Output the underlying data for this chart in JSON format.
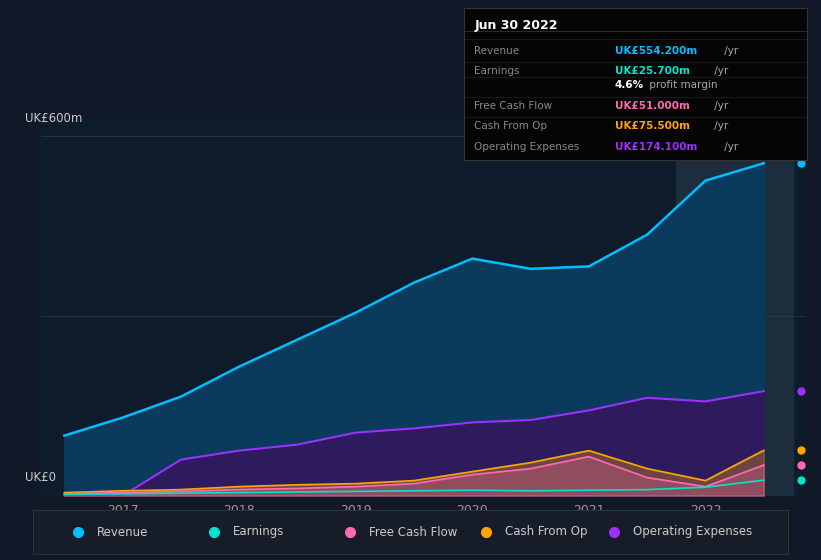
{
  "bg_color": "#111827",
  "chart_bg": "#0d1b2a",
  "ylabel": "UK£600m",
  "ylabel0": "UK£0",
  "x_years": [
    2016.5,
    2017.0,
    2017.5,
    2018.0,
    2018.5,
    2019.0,
    2019.5,
    2020.0,
    2020.5,
    2021.0,
    2021.5,
    2022.0,
    2022.5
  ],
  "revenue": [
    100,
    130,
    165,
    215,
    260,
    305,
    355,
    395,
    378,
    382,
    435,
    525,
    554
  ],
  "earnings": [
    2,
    3,
    4,
    5,
    6,
    7,
    8,
    9,
    8,
    9,
    10,
    14,
    25.7
  ],
  "free_cash_flow": [
    3,
    5,
    7,
    10,
    12,
    15,
    20,
    35,
    45,
    65,
    30,
    15,
    51
  ],
  "cash_from_op": [
    5,
    8,
    10,
    15,
    18,
    20,
    25,
    40,
    55,
    75,
    45,
    25,
    75.5
  ],
  "operating_exp": [
    0,
    0,
    60,
    75,
    85,
    105,
    112,
    122,
    126,
    142,
    163,
    157,
    174.1
  ],
  "revenue_color": "#00bfff",
  "earnings_color": "#00e5cc",
  "fcf_color": "#ff69b4",
  "cashop_color": "#ffa500",
  "opex_color": "#9b30ff",
  "revenue_fill": "#0a3a5c",
  "opex_fill": "#2d1b5e",
  "highlight_x_start": 2021.75,
  "highlight_x_end": 2022.75,
  "highlight_color": "#1e2d3d",
  "info_box": {
    "title": "Jun 30 2022",
    "rows": [
      {
        "label": "Revenue",
        "value": "UK£554.200m",
        "suffix": " /yr",
        "color": "#00bfff"
      },
      {
        "label": "Earnings",
        "value": "UK£25.700m",
        "suffix": " /yr",
        "color": "#00e5cc"
      },
      {
        "label": "",
        "value": "4.6%",
        "suffix": " profit margin",
        "color": "#ffffff"
      },
      {
        "label": "Free Cash Flow",
        "value": "UK£51.000m",
        "suffix": " /yr",
        "color": "#ff69b4"
      },
      {
        "label": "Cash From Op",
        "value": "UK£75.500m",
        "suffix": " /yr",
        "color": "#ffa500"
      },
      {
        "label": "Operating Expenses",
        "value": "UK£174.100m",
        "suffix": " /yr",
        "color": "#9b30ff"
      }
    ]
  },
  "legend": [
    {
      "label": "Revenue",
      "color": "#00bfff"
    },
    {
      "label": "Earnings",
      "color": "#00e5cc"
    },
    {
      "label": "Free Cash Flow",
      "color": "#ff69b4"
    },
    {
      "label": "Cash From Op",
      "color": "#ffa500"
    },
    {
      "label": "Operating Expenses",
      "color": "#9b30ff"
    }
  ],
  "x_tick_labels": [
    "2017",
    "2018",
    "2019",
    "2020",
    "2021",
    "2022"
  ],
  "x_ticks": [
    2017,
    2018,
    2019,
    2020,
    2021,
    2022
  ],
  "ylim": [
    0,
    630
  ],
  "xlim": [
    2016.3,
    2022.85
  ]
}
